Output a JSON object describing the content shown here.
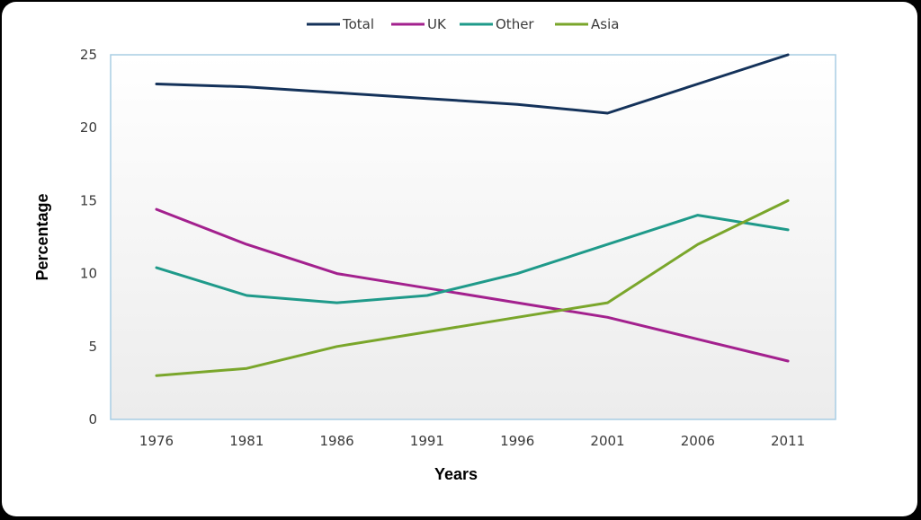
{
  "chart_data": {
    "type": "line",
    "title": "",
    "xlabel": "Years",
    "ylabel": "Percentage",
    "categories": [
      "1976",
      "1981",
      "1986",
      "1991",
      "1996",
      "2001",
      "2006",
      "2011"
    ],
    "ylim": [
      0,
      25
    ],
    "yticks": [
      "0",
      "5",
      "10",
      "15",
      "20",
      "25"
    ],
    "grid": false,
    "legend_position": "top",
    "series": [
      {
        "name": "Total",
        "color": "#14325a",
        "values": [
          23,
          22.8,
          22.4,
          22,
          21.6,
          21,
          23,
          25
        ]
      },
      {
        "name": "UK",
        "color": "#a3218e",
        "values": [
          14.4,
          12,
          10,
          9,
          8,
          7,
          5.5,
          4
        ]
      },
      {
        "name": "Other",
        "color": "#1f9a8a",
        "values": [
          10.4,
          8.5,
          8,
          8.5,
          10,
          12,
          14,
          13
        ]
      },
      {
        "name": "Asia",
        "color": "#7aa62b",
        "values": [
          3,
          3.5,
          5,
          6,
          7,
          8,
          12,
          15
        ]
      }
    ]
  }
}
